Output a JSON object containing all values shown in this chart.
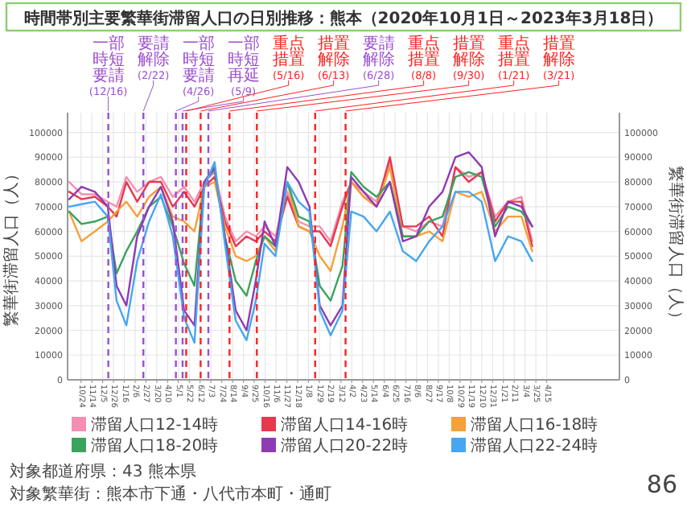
{
  "chart_data": {
    "type": "line",
    "title": "時間帯別主要繁華街滞留人口の日別推移：熊本（2020年10月1日～2023年3月18日）",
    "ylabel": "繁華街滞留人口（人）",
    "y2label": "繁華街滞留人口（人）",
    "x": [
      "2020-10-01",
      "2020-10-25",
      "2020-11-20",
      "2020-12-15",
      "2021-01-01",
      "2021-01-20",
      "2021-02-10",
      "2021-03-05",
      "2021-03-28",
      "2021-04-20",
      "2021-05-12",
      "2021-06-01",
      "2021-06-20",
      "2021-07-10",
      "2021-07-30",
      "2021-08-20",
      "2021-09-10",
      "2021-09-28",
      "2021-10-15",
      "2021-11-05",
      "2021-11-28",
      "2021-12-20",
      "2022-01-10",
      "2022-01-30",
      "2022-02-20",
      "2022-03-15",
      "2022-04-01",
      "2022-04-25",
      "2022-05-20",
      "2022-06-15",
      "2022-07-10",
      "2022-08-05",
      "2022-08-30",
      "2022-09-25",
      "2022-10-20",
      "2022-11-15",
      "2022-12-10",
      "2023-01-05",
      "2023-01-30",
      "2023-02-25",
      "2023-03-18"
    ],
    "series": [
      {
        "name": "滞留人口12-14時",
        "color": "#f48fb1",
        "values": [
          80000,
          75000,
          75000,
          72000,
          70000,
          82000,
          76000,
          80000,
          82000,
          74000,
          78000,
          72000,
          80000,
          84000,
          66000,
          56000,
          60000,
          58000,
          62000,
          58000,
          76000,
          64000,
          62000,
          62000,
          56000,
          72000,
          80000,
          76000,
          72000,
          88000,
          62000,
          60000,
          64000,
          62000,
          86000,
          82000,
          84000,
          66000,
          72000,
          74000,
          56000
        ]
      },
      {
        "name": "滞留人口14-16時",
        "color": "#e53950",
        "values": [
          76000,
          73000,
          74000,
          70000,
          66000,
          80000,
          72000,
          80000,
          80000,
          70000,
          76000,
          70000,
          78000,
          82000,
          64000,
          54000,
          58000,
          56000,
          60000,
          56000,
          74000,
          62000,
          60000,
          60000,
          54000,
          70000,
          80000,
          74000,
          70000,
          90000,
          62000,
          62000,
          66000,
          58000,
          86000,
          80000,
          84000,
          64000,
          72000,
          72000,
          54000
        ]
      },
      {
        "name": "滞留人口16-18時",
        "color": "#f5a03a",
        "values": [
          68000,
          56000,
          60000,
          64000,
          68000,
          72000,
          66000,
          74000,
          78000,
          66000,
          64000,
          60000,
          78000,
          80000,
          62000,
          50000,
          48000,
          50000,
          58000,
          52000,
          80000,
          62000,
          60000,
          50000,
          44000,
          62000,
          80000,
          74000,
          70000,
          86000,
          58000,
          58000,
          60000,
          56000,
          76000,
          74000,
          76000,
          60000,
          66000,
          66000,
          52000
        ]
      },
      {
        "name": "滞留人口18-20時",
        "color": "#3aa35e",
        "values": [
          68000,
          63000,
          64000,
          66000,
          43000,
          52000,
          60000,
          70000,
          74000,
          62000,
          47000,
          38000,
          80000,
          85000,
          58000,
          40000,
          34000,
          48000,
          58000,
          54000,
          80000,
          66000,
          64000,
          38000,
          32000,
          46000,
          84000,
          78000,
          74000,
          80000,
          58000,
          58000,
          64000,
          66000,
          82000,
          84000,
          82000,
          62000,
          70000,
          68000,
          62000
        ]
      },
      {
        "name": "滞留人口20-22時",
        "color": "#8e3bb4",
        "values": [
          73000,
          78000,
          76000,
          70000,
          38000,
          30000,
          58000,
          70000,
          78000,
          64000,
          28000,
          22000,
          80000,
          86000,
          58000,
          28000,
          20000,
          40000,
          64000,
          54000,
          86000,
          80000,
          70000,
          30000,
          22000,
          30000,
          82000,
          76000,
          70000,
          80000,
          56000,
          58000,
          70000,
          76000,
          90000,
          92000,
          86000,
          58000,
          72000,
          70000,
          62000
        ]
      },
      {
        "name": "滞留人口22-24時",
        "color": "#46a6f0",
        "values": [
          70000,
          71000,
          72000,
          66000,
          32000,
          22000,
          48000,
          64000,
          75000,
          58000,
          25000,
          15000,
          78000,
          88000,
          55000,
          24000,
          16000,
          32000,
          55000,
          50000,
          80000,
          72000,
          68000,
          28000,
          18000,
          28000,
          68000,
          66000,
          60000,
          68000,
          52000,
          48000,
          56000,
          62000,
          76000,
          76000,
          72000,
          48000,
          58000,
          56000,
          48000
        ]
      }
    ],
    "xlim": [
      "2020-09-28",
      "2023-09-03"
    ],
    "xticks": [
      {
        "value": "2020-10-24",
        "label": "10/24"
      },
      {
        "value": "2020-11-14",
        "label": "11/14"
      },
      {
        "value": "2020-12-05",
        "label": "12/5"
      },
      {
        "value": "2020-12-26",
        "label": "12/26"
      },
      {
        "value": "2021-01-16",
        "label": "1/16"
      },
      {
        "value": "2021-02-06",
        "label": "2/6"
      },
      {
        "value": "2021-02-27",
        "label": "2/27"
      },
      {
        "value": "2021-03-20",
        "label": "3/20"
      },
      {
        "value": "2021-04-10",
        "label": "4/10"
      },
      {
        "value": "2021-05-01",
        "label": "5/1"
      },
      {
        "value": "2021-05-22",
        "label": "5/22"
      },
      {
        "value": "2021-06-12",
        "label": "6/12"
      },
      {
        "value": "2021-07-03",
        "label": "7/3"
      },
      {
        "value": "2021-07-24",
        "label": "7/24"
      },
      {
        "value": "2021-08-14",
        "label": "8/14"
      },
      {
        "value": "2021-09-04",
        "label": "9/4"
      },
      {
        "value": "2021-09-25",
        "label": "9/25"
      },
      {
        "value": "2021-10-16",
        "label": "10/16"
      },
      {
        "value": "2021-11-06",
        "label": "11/6"
      },
      {
        "value": "2021-11-27",
        "label": "11/27"
      },
      {
        "value": "2021-12-18",
        "label": "12/18"
      },
      {
        "value": "2022-01-08",
        "label": "1/8"
      },
      {
        "value": "2022-01-29",
        "label": "1/29"
      },
      {
        "value": "2022-02-19",
        "label": "2/19"
      },
      {
        "value": "2022-03-12",
        "label": "3/12"
      },
      {
        "value": "2022-04-02",
        "label": "4/2"
      },
      {
        "value": "2022-04-23",
        "label": "4/23"
      },
      {
        "value": "2022-05-14",
        "label": "5/14"
      },
      {
        "value": "2022-06-04",
        "label": "6/4"
      },
      {
        "value": "2022-06-25",
        "label": "6/25"
      },
      {
        "value": "2022-07-16",
        "label": "7/16"
      },
      {
        "value": "2022-08-06",
        "label": "8/6"
      },
      {
        "value": "2022-08-27",
        "label": "8/27"
      },
      {
        "value": "2022-09-17",
        "label": "9/17"
      },
      {
        "value": "2022-10-08",
        "label": "10/8"
      },
      {
        "value": "2022-10-29",
        "label": "10/29"
      },
      {
        "value": "2022-11-19",
        "label": "11/19"
      },
      {
        "value": "2022-12-10",
        "label": "12/10"
      },
      {
        "value": "2022-12-31",
        "label": "12/31"
      },
      {
        "value": "2023-01-21",
        "label": "1/21"
      },
      {
        "value": "2023-02-11",
        "label": "2/11"
      },
      {
        "value": "2023-03-04",
        "label": "3/4"
      },
      {
        "value": "2023-03-25",
        "label": "3/25"
      },
      {
        "value": "2023-04-15",
        "label": "4/15"
      }
    ],
    "ylim": [
      0,
      108000
    ],
    "yticks": [
      0,
      10000,
      20000,
      30000,
      40000,
      50000,
      60000,
      70000,
      80000,
      90000,
      100000
    ],
    "y2lim": [
      0,
      108000
    ],
    "y2ticks": [
      0,
      10000,
      20000,
      30000,
      40000,
      50000,
      60000,
      70000,
      80000,
      90000,
      100000
    ],
    "grid": true,
    "legend": "bottom",
    "marker": "none",
    "line_style": "solid",
    "ref_lines": [
      {
        "axis": "x",
        "value": "2020-12-16",
        "label": "一部時短要請(12/16)",
        "color": "#9b4fd0",
        "line_style": "dashed"
      },
      {
        "axis": "x",
        "value": "2021-02-22",
        "label": "要請解除(2/22)",
        "color": "#9b4fd0",
        "line_style": "dashed"
      },
      {
        "axis": "x",
        "value": "2021-04-26",
        "label": "一部時短要請(4/26)",
        "color": "#9b4fd0",
        "line_style": "dashed"
      },
      {
        "axis": "x",
        "value": "2021-05-09",
        "label": "一部時短再延(5/9)",
        "color": "#9b4fd0",
        "line_style": "dashed"
      },
      {
        "axis": "x",
        "value": "2021-05-16",
        "label": "重点措置(5/16)",
        "color": "#ff2020",
        "line_style": "dashed"
      },
      {
        "axis": "x",
        "value": "2021-06-13",
        "label": "措置解除(6/13)",
        "color": "#ff2020",
        "line_style": "dashed"
      },
      {
        "axis": "x",
        "value": "2021-06-28",
        "label": "要請解除(6/28)",
        "color": "#9b4fd0",
        "line_style": "dashed"
      },
      {
        "axis": "x",
        "value": "2021-08-08",
        "label": "重点措置(8/8)",
        "color": "#ff2020",
        "line_style": "dashed"
      },
      {
        "axis": "x",
        "value": "2021-09-30",
        "label": "措置解除(9/30)",
        "color": "#ff2020",
        "line_style": "dashed"
      },
      {
        "axis": "x",
        "value": "2022-01-21",
        "label": "重点措置(1/21)",
        "color": "#ff2020",
        "line_style": "dashed"
      },
      {
        "axis": "x",
        "value": "2022-03-21",
        "label": "措置解除(3/21)",
        "color": "#ff2020",
        "line_style": "dashed"
      }
    ],
    "annotations": [
      "対象都道府県：43 熊本県",
      "対象繁華街：熊本市下通・八代市本町・通町",
      "86"
    ]
  }
}
